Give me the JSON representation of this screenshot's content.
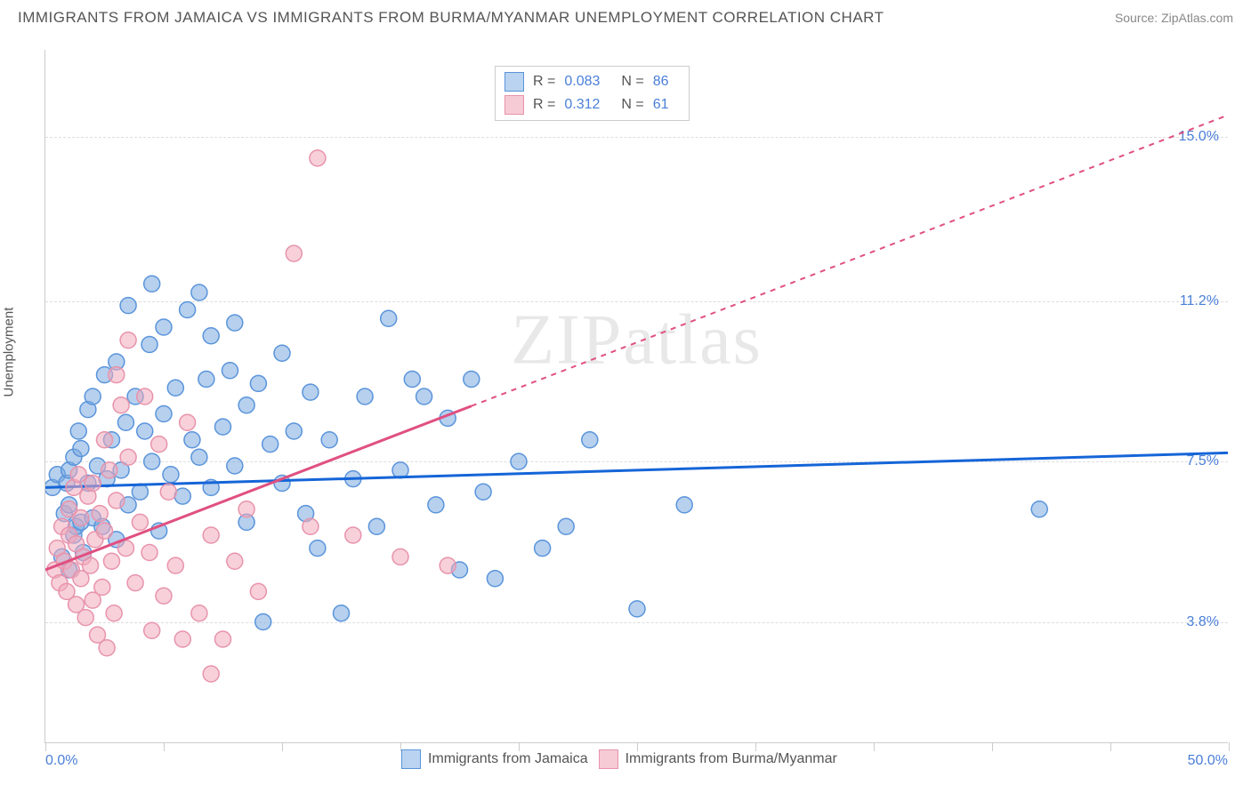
{
  "header": {
    "title": "IMMIGRANTS FROM JAMAICA VS IMMIGRANTS FROM BURMA/MYANMAR UNEMPLOYMENT CORRELATION CHART",
    "source": "Source: ZipAtlas.com"
  },
  "chart": {
    "type": "scatter",
    "ylabel": "Unemployment",
    "watermark": "ZIPatlas",
    "background_color": "#ffffff",
    "grid_color": "#dddddd",
    "axis_color": "#cccccc",
    "xlim": [
      0,
      50
    ],
    "ylim": [
      1,
      17
    ],
    "x_start_label": "0.0%",
    "x_end_label": "50.0%",
    "xtick_positions": [
      0,
      5,
      10,
      15,
      20,
      25,
      30,
      35,
      40,
      45,
      50
    ],
    "ygrid": [
      {
        "value": 3.8,
        "label": "3.8%"
      },
      {
        "value": 7.5,
        "label": "7.5%"
      },
      {
        "value": 11.2,
        "label": "11.2%"
      },
      {
        "value": 15.0,
        "label": "15.0%"
      }
    ],
    "ytick_color": "#4a7fd8",
    "xlim_color": "#4a7fd8",
    "legend_top": {
      "rows": [
        {
          "swatch_fill": "#b9d3f0",
          "swatch_stroke": "#5a94db",
          "r_label": "R =",
          "r_val": "0.083",
          "n_label": "N =",
          "n_val": "86",
          "val_color": "#4a7fd8"
        },
        {
          "swatch_fill": "#f6cbd5",
          "swatch_stroke": "#e893ab",
          "r_label": "R =",
          "r_val": "0.312",
          "n_label": "N =",
          "n_val": "61",
          "val_color": "#4a7fd8"
        }
      ]
    },
    "legend_bottom": [
      {
        "swatch_fill": "#b9d3f0",
        "swatch_stroke": "#5a94db",
        "label": "Immigrants from Jamaica"
      },
      {
        "swatch_fill": "#f6cbd5",
        "swatch_stroke": "#e893ab",
        "label": "Immigrants from Burma/Myanmar"
      }
    ],
    "series": [
      {
        "name": "jamaica",
        "marker_fill": "rgba(122,170,224,0.55)",
        "marker_stroke": "#5a94db",
        "marker_radius": 9,
        "trend_color": "#1565d8",
        "trend_width": 3,
        "trend_dash_after_x": 50,
        "trend": {
          "x1": 0,
          "y1": 6.9,
          "x2": 50,
          "y2": 7.7
        },
        "points": [
          [
            0.3,
            6.9
          ],
          [
            0.5,
            7.2
          ],
          [
            0.7,
            5.3
          ],
          [
            0.8,
            6.3
          ],
          [
            0.9,
            7.0
          ],
          [
            1.0,
            6.5
          ],
          [
            1.0,
            7.3
          ],
          [
            1.2,
            5.8
          ],
          [
            1.2,
            7.6
          ],
          [
            1.3,
            6.0
          ],
          [
            1.4,
            8.2
          ],
          [
            1.5,
            6.1
          ],
          [
            1.5,
            7.8
          ],
          [
            1.6,
            5.4
          ],
          [
            1.8,
            7.0
          ],
          [
            1.8,
            8.7
          ],
          [
            2.0,
            6.2
          ],
          [
            2.0,
            9.0
          ],
          [
            2.2,
            7.4
          ],
          [
            2.4,
            6.0
          ],
          [
            2.5,
            9.5
          ],
          [
            2.6,
            7.1
          ],
          [
            2.8,
            8.0
          ],
          [
            3.0,
            5.7
          ],
          [
            3.0,
            9.8
          ],
          [
            3.2,
            7.3
          ],
          [
            3.4,
            8.4
          ],
          [
            3.5,
            6.5
          ],
          [
            3.5,
            11.1
          ],
          [
            3.8,
            9.0
          ],
          [
            4.0,
            6.8
          ],
          [
            4.2,
            8.2
          ],
          [
            4.4,
            10.2
          ],
          [
            4.5,
            7.5
          ],
          [
            4.5,
            11.6
          ],
          [
            4.8,
            5.9
          ],
          [
            5.0,
            8.6
          ],
          [
            5.0,
            10.6
          ],
          [
            5.3,
            7.2
          ],
          [
            5.5,
            9.2
          ],
          [
            5.8,
            6.7
          ],
          [
            6.0,
            11.0
          ],
          [
            6.2,
            8.0
          ],
          [
            6.5,
            7.6
          ],
          [
            6.5,
            11.4
          ],
          [
            6.8,
            9.4
          ],
          [
            7.0,
            6.9
          ],
          [
            7.0,
            10.4
          ],
          [
            7.5,
            8.3
          ],
          [
            7.8,
            9.6
          ],
          [
            8.0,
            7.4
          ],
          [
            8.0,
            10.7
          ],
          [
            8.5,
            8.8
          ],
          [
            8.5,
            6.1
          ],
          [
            9.0,
            9.3
          ],
          [
            9.2,
            3.8
          ],
          [
            9.5,
            7.9
          ],
          [
            10.0,
            10.0
          ],
          [
            10.0,
            7.0
          ],
          [
            10.5,
            8.2
          ],
          [
            11.0,
            6.3
          ],
          [
            11.2,
            9.1
          ],
          [
            11.5,
            5.5
          ],
          [
            12.0,
            8.0
          ],
          [
            12.5,
            4.0
          ],
          [
            13.0,
            7.1
          ],
          [
            13.5,
            9.0
          ],
          [
            14.0,
            6.0
          ],
          [
            14.5,
            10.8
          ],
          [
            15.0,
            7.3
          ],
          [
            15.5,
            9.4
          ],
          [
            16.0,
            9.0
          ],
          [
            16.5,
            6.5
          ],
          [
            17.0,
            8.5
          ],
          [
            17.5,
            5.0
          ],
          [
            18.0,
            9.4
          ],
          [
            18.5,
            6.8
          ],
          [
            19.0,
            4.8
          ],
          [
            20.0,
            7.5
          ],
          [
            21.0,
            5.5
          ],
          [
            22.0,
            6.0
          ],
          [
            23.0,
            8.0
          ],
          [
            25.0,
            4.1
          ],
          [
            27.0,
            6.5
          ],
          [
            42.0,
            6.4
          ],
          [
            1.0,
            5.0
          ]
        ]
      },
      {
        "name": "burma",
        "marker_fill": "rgba(241,170,188,0.55)",
        "marker_stroke": "#e893ab",
        "marker_radius": 9,
        "trend_color": "#e05080",
        "trend_width": 3,
        "trend_dash_after_x": 18,
        "trend": {
          "x1": 0,
          "y1": 5.0,
          "x2": 50,
          "y2": 15.5
        },
        "points": [
          [
            0.4,
            5.0
          ],
          [
            0.5,
            5.5
          ],
          [
            0.6,
            4.7
          ],
          [
            0.7,
            6.0
          ],
          [
            0.8,
            5.2
          ],
          [
            0.9,
            4.5
          ],
          [
            1.0,
            5.8
          ],
          [
            1.0,
            6.4
          ],
          [
            1.1,
            5.0
          ],
          [
            1.2,
            6.9
          ],
          [
            1.3,
            4.2
          ],
          [
            1.3,
            5.6
          ],
          [
            1.4,
            7.2
          ],
          [
            1.5,
            4.8
          ],
          [
            1.5,
            6.2
          ],
          [
            1.6,
            5.3
          ],
          [
            1.7,
            3.9
          ],
          [
            1.8,
            6.7
          ],
          [
            1.9,
            5.1
          ],
          [
            2.0,
            4.3
          ],
          [
            2.0,
            7.0
          ],
          [
            2.1,
            5.7
          ],
          [
            2.2,
            3.5
          ],
          [
            2.3,
            6.3
          ],
          [
            2.4,
            4.6
          ],
          [
            2.5,
            5.9
          ],
          [
            2.5,
            8.0
          ],
          [
            2.6,
            3.2
          ],
          [
            2.7,
            7.3
          ],
          [
            2.8,
            5.2
          ],
          [
            2.9,
            4.0
          ],
          [
            3.0,
            6.6
          ],
          [
            3.0,
            9.5
          ],
          [
            3.2,
            8.8
          ],
          [
            3.4,
            5.5
          ],
          [
            3.5,
            7.6
          ],
          [
            3.5,
            10.3
          ],
          [
            3.8,
            4.7
          ],
          [
            4.0,
            6.1
          ],
          [
            4.2,
            9.0
          ],
          [
            4.4,
            5.4
          ],
          [
            4.5,
            3.6
          ],
          [
            4.8,
            7.9
          ],
          [
            5.0,
            4.4
          ],
          [
            5.2,
            6.8
          ],
          [
            5.5,
            5.1
          ],
          [
            5.8,
            3.4
          ],
          [
            6.0,
            8.4
          ],
          [
            6.5,
            4.0
          ],
          [
            7.0,
            5.8
          ],
          [
            7.0,
            2.6
          ],
          [
            7.5,
            3.4
          ],
          [
            8.0,
            5.2
          ],
          [
            8.5,
            6.4
          ],
          [
            9.0,
            4.5
          ],
          [
            10.5,
            12.3
          ],
          [
            11.2,
            6.0
          ],
          [
            11.5,
            14.5
          ],
          [
            13.0,
            5.8
          ],
          [
            15.0,
            5.3
          ],
          [
            17.0,
            5.1
          ]
        ]
      }
    ]
  }
}
